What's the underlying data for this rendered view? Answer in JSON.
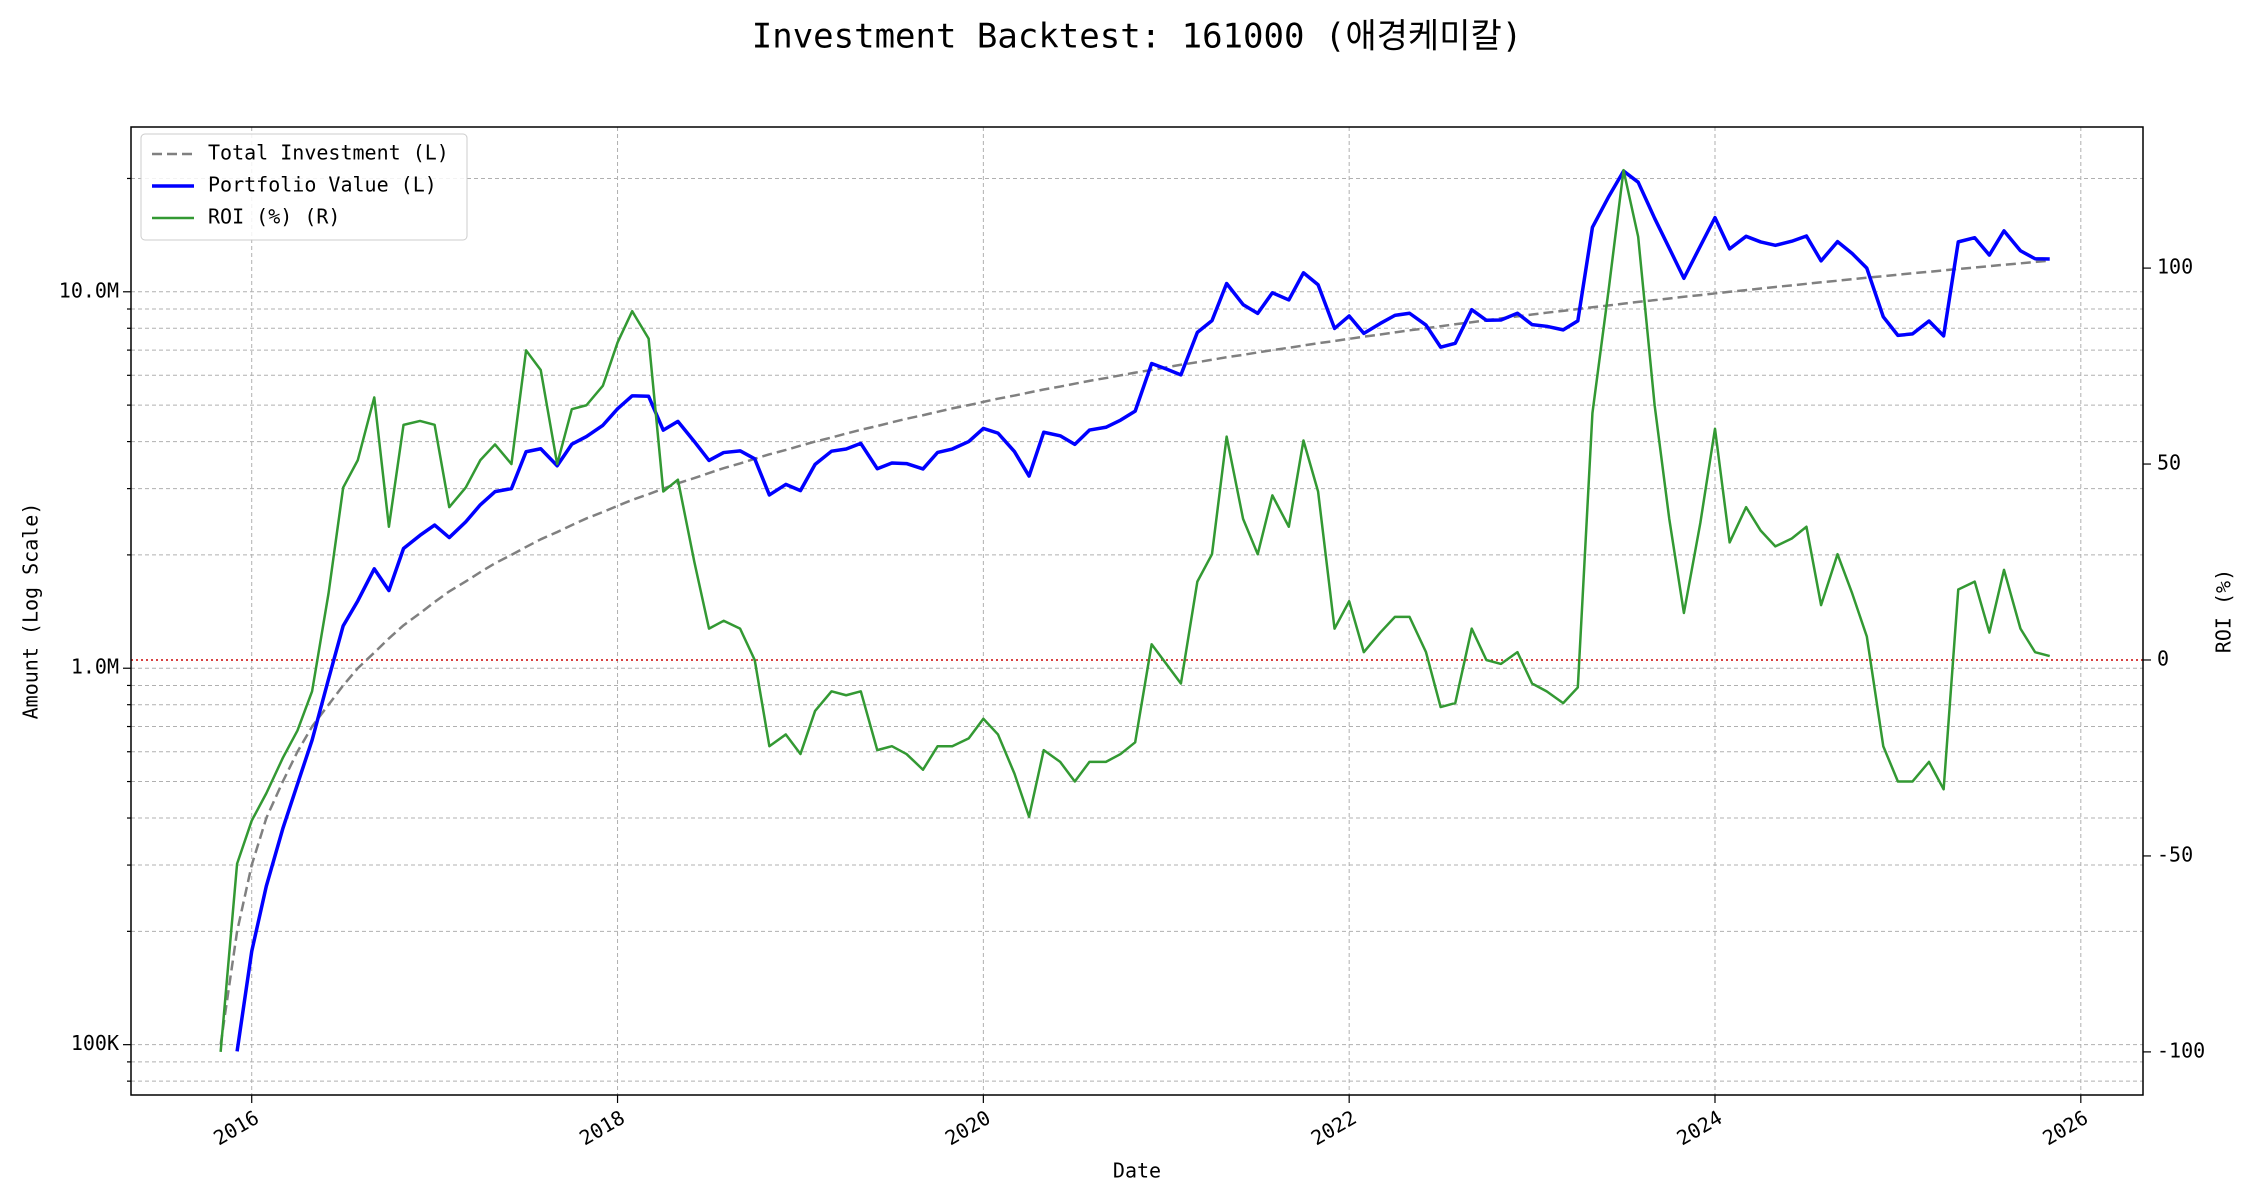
{
  "chart_data": {
    "type": "line",
    "title": "Investment Backtest: 161000 (애경케미칼)",
    "xlabel": "Date",
    "ylabel": "Amount (Log Scale)",
    "y2label": "ROI (%)",
    "ylog": true,
    "grid": true,
    "legend_loc": "upper left",
    "xlim": [
      2015.34,
      2026.34
    ],
    "xticks": [
      2016,
      2018,
      2020,
      2022,
      2024,
      2026
    ],
    "ylim": [
      73500,
      27400000
    ],
    "yticks": [
      {
        "value": 100000,
        "label": "100K"
      },
      {
        "value": 1000000,
        "label": "1.0M"
      },
      {
        "value": 10000000,
        "label": "10.0M"
      }
    ],
    "yminorticks": [
      80000,
      90000,
      200000,
      300000,
      400000,
      500000,
      600000,
      700000,
      800000,
      900000,
      2000000,
      3000000,
      4000000,
      5000000,
      6000000,
      7000000,
      8000000,
      9000000,
      20000000
    ],
    "y2lim": [
      -111,
      136
    ],
    "y2ticks": [
      -100,
      -50,
      0,
      50,
      100
    ],
    "zero_line": {
      "value": 0,
      "axis": "y2",
      "color": "#cc0000"
    },
    "x": [
      2015.83,
      2015.92,
      2016,
      2016.08,
      2016.17,
      2016.25,
      2016.33,
      2016.42,
      2016.5,
      2016.58,
      2016.67,
      2016.75,
      2016.83,
      2016.92,
      2017,
      2017.08,
      2017.17,
      2017.25,
      2017.33,
      2017.42,
      2017.5,
      2017.58,
      2017.67,
      2017.75,
      2017.83,
      2017.92,
      2018,
      2018.08,
      2018.17,
      2018.25,
      2018.33,
      2018.42,
      2018.5,
      2018.58,
      2018.67,
      2018.75,
      2018.83,
      2018.92,
      2019,
      2019.08,
      2019.17,
      2019.25,
      2019.33,
      2019.42,
      2019.5,
      2019.58,
      2019.67,
      2019.75,
      2019.83,
      2019.92,
      2020,
      2020.08,
      2020.17,
      2020.25,
      2020.33,
      2020.42,
      2020.5,
      2020.58,
      2020.67,
      2020.75,
      2020.83,
      2020.92,
      2021,
      2021.08,
      2021.17,
      2021.25,
      2021.33,
      2021.42,
      2021.5,
      2021.58,
      2021.67,
      2021.75,
      2021.83,
      2021.92,
      2022,
      2022.08,
      2022.17,
      2022.25,
      2022.33,
      2022.42,
      2022.5,
      2022.58,
      2022.67,
      2022.75,
      2022.83,
      2022.92,
      2023,
      2023.08,
      2023.17,
      2023.25,
      2023.33,
      2023.42,
      2023.5,
      2023.58,
      2023.67,
      2023.75,
      2023.83,
      2023.92,
      2024,
      2024.08,
      2024.17,
      2024.25,
      2024.33,
      2024.42,
      2024.5,
      2024.58,
      2024.67,
      2024.75,
      2024.83,
      2024.92,
      2025,
      2025.08,
      2025.17,
      2025.25,
      2025.33,
      2025.42,
      2025.5,
      2025.58,
      2025.67,
      2025.75,
      2025.83
    ],
    "series": [
      {
        "name": "Total Investment (L)",
        "color": "#808080",
        "linestyle": "dashed",
        "axis": "y",
        "values": [
          100000,
          200000,
          300000,
          400000,
          500000,
          600000,
          700000,
          800000,
          900000,
          1000000,
          1100000,
          1200000,
          1300000,
          1400000,
          1500000,
          1600000,
          1700000,
          1800000,
          1900000,
          2000000,
          2100000,
          2200000,
          2300000,
          2400000,
          2500000,
          2600000,
          2700000,
          2800000,
          2900000,
          3000000,
          3100000,
          3200000,
          3300000,
          3400000,
          3500000,
          3600000,
          3700000,
          3800000,
          3900000,
          4000000,
          4100000,
          4200000,
          4300000,
          4400000,
          4500000,
          4600000,
          4700000,
          4800000,
          4900000,
          5000000,
          5100000,
          5200000,
          5300000,
          5400000,
          5500000,
          5600000,
          5700000,
          5800000,
          5900000,
          6000000,
          6100000,
          6200000,
          6300000,
          6400000,
          6500000,
          6600000,
          6700000,
          6800000,
          6900000,
          7000000,
          7100000,
          7200000,
          7300000,
          7400000,
          7500000,
          7600000,
          7700000,
          7800000,
          7900000,
          8000000,
          8100000,
          8200000,
          8300000,
          8400000,
          8500000,
          8600000,
          8700000,
          8800000,
          8900000,
          9000000,
          9100000,
          9200000,
          9300000,
          9400000,
          9500000,
          9600000,
          9700000,
          9800000,
          9900000,
          10000000,
          10100000,
          10200000,
          10300000,
          10400000,
          10500000,
          10600000,
          10700000,
          10800000,
          10900000,
          11000000,
          11100000,
          11200000,
          11300000,
          11400000,
          11500000,
          11600000,
          11700000,
          11800000,
          11900000,
          12000000,
          12100000
        ]
      },
      {
        "name": "Portfolio Value (L)",
        "color": "#0000ff",
        "linestyle": "solid",
        "axis": "y",
        "values": [
          null,
          96000,
          177000,
          264000,
          375000,
          492000,
          644000,
          936000,
          1296000,
          1510000,
          1837000,
          1608000,
          2080000,
          2254000,
          2400000,
          2224000,
          2448000,
          2718000,
          2945000,
          3000000,
          3759000,
          3828000,
          3450000,
          3936000,
          4125000,
          4420000,
          4887000,
          5292000,
          5278000,
          4290000,
          4526000,
          4000000,
          3564000,
          3740000,
          3780000,
          3600000,
          2886000,
          3078000,
          2964000,
          3480000,
          3772000,
          3822000,
          3956000,
          3388000,
          3510000,
          3496000,
          3384000,
          3744000,
          3822000,
          4000000,
          4335000,
          4212000,
          3763000,
          3240000,
          4235000,
          4144000,
          3933000,
          4292000,
          4366000,
          4560000,
          4819000,
          6448000,
          6237000,
          6016000,
          7800000,
          8382000,
          10519000,
          9248000,
          8763000,
          9940000,
          9514000,
          11232000,
          10439000,
          7992000,
          8625000,
          7752000,
          8239000,
          8658000,
          8769000,
          8160000,
          7128000,
          7298000,
          8964000,
          8400000,
          8415000,
          8772000,
          8178000,
          8096000,
          7921000,
          8370000,
          14833000,
          17940000,
          20925000,
          19552000,
          15675000,
          13056000,
          10864000,
          13230000,
          15741000,
          13000000,
          14039000,
          13566000,
          13287000,
          13624000,
          14070000,
          12084000,
          13589000,
          12636000,
          11554000,
          8580000,
          7659000,
          7728000,
          8362000,
          7638000,
          13570000,
          13920000,
          12519000,
          14514000,
          12852000,
          12240000,
          12221000
        ]
      },
      {
        "name": "ROI (%) (R)",
        "color": "#339933",
        "linestyle": "solid",
        "axis": "y2",
        "values": [
          -100,
          -52,
          -41,
          -34,
          -25,
          -18,
          -8,
          17,
          44,
          51,
          67,
          34,
          60,
          61,
          60,
          39,
          44,
          51,
          55,
          50,
          79,
          74,
          50,
          64,
          65,
          70,
          81,
          89,
          82,
          43,
          46,
          25,
          8,
          10,
          8,
          0,
          -22,
          -19,
          -24,
          -13,
          -8,
          -9,
          -8,
          -23,
          -22,
          -24,
          -28,
          -22,
          -22,
          -20,
          -15,
          -19,
          -29,
          -40,
          -23,
          -26,
          -31,
          -26,
          -26,
          -24,
          -21,
          4,
          -1,
          -6,
          20,
          27,
          57,
          36,
          27,
          42,
          34,
          56,
          43,
          8,
          15,
          2,
          7,
          11,
          11,
          2,
          -12,
          -11,
          8,
          0,
          -1,
          2,
          -6,
          -8,
          -11,
          -7,
          63,
          95,
          125,
          108,
          65,
          36,
          12,
          35,
          59,
          30,
          39,
          33,
          29,
          31,
          34,
          14,
          27,
          17,
          6,
          -22,
          -31,
          -31,
          -26,
          -33,
          18,
          20,
          7,
          23,
          8,
          2,
          1
        ]
      }
    ]
  }
}
